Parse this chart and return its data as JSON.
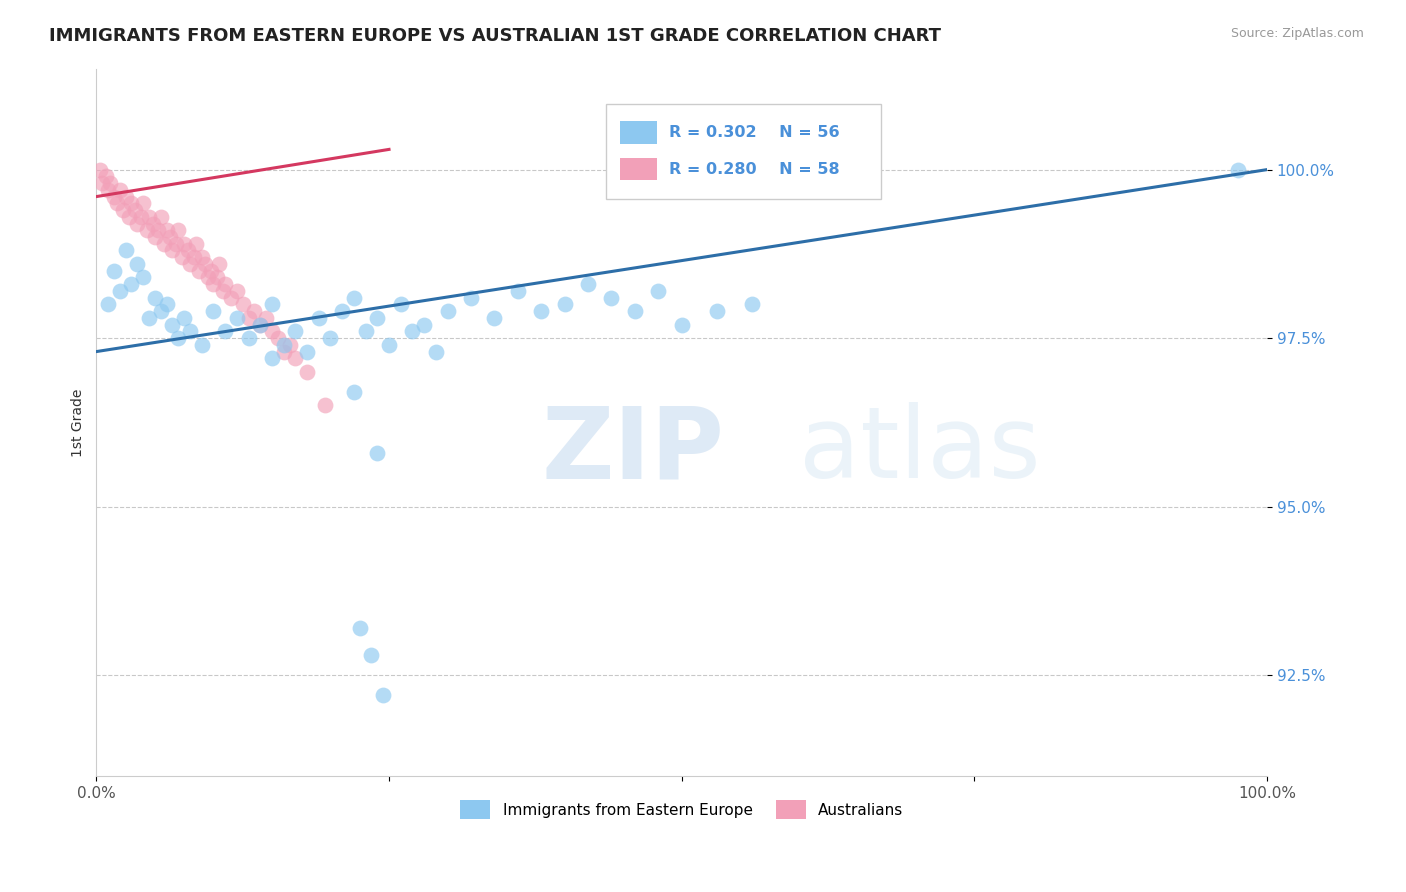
{
  "title": "IMMIGRANTS FROM EASTERN EUROPE VS AUSTRALIAN 1ST GRADE CORRELATION CHART",
  "source": "Source: ZipAtlas.com",
  "ylabel": "1st Grade",
  "xlim": [
    0.0,
    100.0
  ],
  "ylim": [
    91.0,
    101.5
  ],
  "yticks": [
    92.5,
    95.0,
    97.5,
    100.0
  ],
  "ytick_labels": [
    "92.5%",
    "95.0%",
    "97.5%",
    "100.0%"
  ],
  "xticks": [
    0.0,
    25.0,
    50.0,
    75.0,
    100.0
  ],
  "xtick_labels": [
    "0.0%",
    "",
    "",
    "",
    "100.0%"
  ],
  "blue_R": 0.302,
  "blue_N": 56,
  "pink_R": 0.28,
  "pink_N": 58,
  "blue_label": "Immigrants from Eastern Europe",
  "pink_label": "Australians",
  "blue_color": "#8DC8F0",
  "pink_color": "#F2A0B8",
  "blue_line_color": "#2D6EA8",
  "pink_line_color": "#D43860",
  "background_color": "#ffffff",
  "blue_line_x0": 0.0,
  "blue_line_y0": 97.3,
  "blue_line_x1": 100.0,
  "blue_line_y1": 100.0,
  "pink_line_x0": 0.0,
  "pink_line_y0": 99.6,
  "pink_line_x1": 25.0,
  "pink_line_y1": 100.3,
  "blue_scatter_x": [
    1.0,
    1.5,
    2.0,
    2.5,
    3.0,
    3.5,
    4.0,
    4.5,
    5.0,
    5.5,
    6.0,
    6.5,
    7.0,
    7.5,
    8.0,
    9.0,
    10.0,
    11.0,
    12.0,
    13.0,
    14.0,
    15.0,
    17.0,
    19.0,
    21.0,
    22.0,
    24.0,
    26.0,
    28.0,
    30.0,
    32.0,
    34.0,
    36.0,
    38.0,
    40.0,
    42.0,
    44.0,
    46.0,
    48.0,
    50.0,
    53.0,
    56.0,
    18.0,
    20.0,
    23.0,
    25.0,
    15.0,
    16.0,
    27.0,
    29.0,
    97.5,
    22.0,
    24.0,
    22.5,
    23.5,
    24.5
  ],
  "blue_scatter_y": [
    98.0,
    98.5,
    98.2,
    98.8,
    98.3,
    98.6,
    98.4,
    97.8,
    98.1,
    97.9,
    98.0,
    97.7,
    97.5,
    97.8,
    97.6,
    97.4,
    97.9,
    97.6,
    97.8,
    97.5,
    97.7,
    98.0,
    97.6,
    97.8,
    97.9,
    98.1,
    97.8,
    98.0,
    97.7,
    97.9,
    98.1,
    97.8,
    98.2,
    97.9,
    98.0,
    98.3,
    98.1,
    97.9,
    98.2,
    97.7,
    97.9,
    98.0,
    97.3,
    97.5,
    97.6,
    97.4,
    97.2,
    97.4,
    97.6,
    97.3,
    100.0,
    96.7,
    95.8,
    93.2,
    92.8,
    92.2
  ],
  "pink_scatter_x": [
    0.3,
    0.5,
    0.8,
    1.0,
    1.2,
    1.5,
    1.8,
    2.0,
    2.3,
    2.5,
    2.8,
    3.0,
    3.3,
    3.5,
    3.8,
    4.0,
    4.3,
    4.5,
    4.8,
    5.0,
    5.3,
    5.5,
    5.8,
    6.0,
    6.3,
    6.5,
    6.8,
    7.0,
    7.3,
    7.5,
    7.8,
    8.0,
    8.3,
    8.5,
    8.8,
    9.0,
    9.3,
    9.5,
    9.8,
    10.0,
    10.3,
    10.5,
    10.8,
    11.0,
    11.5,
    12.0,
    12.5,
    13.0,
    13.5,
    14.0,
    14.5,
    15.0,
    15.5,
    16.0,
    16.5,
    17.0,
    18.0,
    19.5
  ],
  "pink_scatter_y": [
    100.0,
    99.8,
    99.9,
    99.7,
    99.8,
    99.6,
    99.5,
    99.7,
    99.4,
    99.6,
    99.3,
    99.5,
    99.4,
    99.2,
    99.3,
    99.5,
    99.1,
    99.3,
    99.2,
    99.0,
    99.1,
    99.3,
    98.9,
    99.1,
    99.0,
    98.8,
    98.9,
    99.1,
    98.7,
    98.9,
    98.8,
    98.6,
    98.7,
    98.9,
    98.5,
    98.7,
    98.6,
    98.4,
    98.5,
    98.3,
    98.4,
    98.6,
    98.2,
    98.3,
    98.1,
    98.2,
    98.0,
    97.8,
    97.9,
    97.7,
    97.8,
    97.6,
    97.5,
    97.3,
    97.4,
    97.2,
    97.0,
    96.5
  ]
}
